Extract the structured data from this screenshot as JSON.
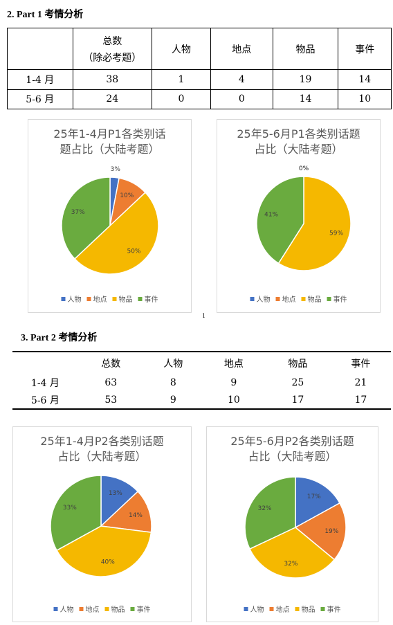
{
  "sections": [
    {
      "title": "2.  Part 1 考情分析",
      "table": {
        "header": [
          "总数",
          "人物",
          "地点",
          "物品",
          "事件"
        ],
        "header_note": "（除必考题）",
        "rows": [
          [
            "1-4 月",
            38,
            1,
            4,
            19,
            14
          ],
          [
            "5-6 月",
            24,
            0,
            0,
            14,
            10
          ]
        ]
      }
    },
    {
      "title": "3.  Part 2 考情分析",
      "table": {
        "header": [
          "总数",
          "人物",
          "地点",
          "物品",
          "事件"
        ],
        "rows": [
          [
            "1-4 月",
            63,
            8,
            9,
            25,
            21
          ],
          [
            "5-6 月",
            53,
            9,
            10,
            17,
            17
          ]
        ]
      }
    }
  ],
  "page_number": "1",
  "chart_data": [
    {
      "type": "pie",
      "title_lines": [
        "25年1-4月P1各类别话",
        "题占比（大陆考题）"
      ],
      "categories": [
        "人物",
        "地点",
        "物品",
        "事件"
      ],
      "colors": [
        "#4472c4",
        "#ed7d31",
        "#f5b800",
        "#6aab3f"
      ],
      "values": [
        3,
        10,
        50,
        37
      ],
      "value_labels": [
        "3%",
        "10%",
        "50%",
        "37%"
      ]
    },
    {
      "type": "pie",
      "title_lines": [
        "25年5-6月P1各类别话题",
        "占比（大陆考题）"
      ],
      "categories": [
        "人物",
        "地点",
        "物品",
        "事件"
      ],
      "colors": [
        "#4472c4",
        "#ed7d31",
        "#f5b800",
        "#6aab3f"
      ],
      "values": [
        0,
        0,
        59,
        41
      ],
      "value_labels": [
        "0%",
        "0%",
        "59%",
        "41%"
      ]
    },
    {
      "type": "pie",
      "title_lines": [
        "25年1-4月P2各类别话题",
        "占比（大陆考题）"
      ],
      "categories": [
        "人物",
        "地点",
        "物品",
        "事件"
      ],
      "colors": [
        "#4472c4",
        "#ed7d31",
        "#f5b800",
        "#6aab3f"
      ],
      "values": [
        13,
        14,
        40,
        33
      ],
      "value_labels": [
        "13%",
        "14%",
        "40%",
        "33%"
      ]
    },
    {
      "type": "pie",
      "title_lines": [
        "25年5-6月P2各类别话题",
        "占比（大陆考题）"
      ],
      "categories": [
        "人物",
        "地点",
        "物品",
        "事件"
      ],
      "colors": [
        "#4472c4",
        "#ed7d31",
        "#f5b800",
        "#6aab3f"
      ],
      "values": [
        17,
        19,
        32,
        32
      ],
      "value_labels": [
        "17%",
        "19%",
        "32%",
        "32%"
      ]
    }
  ]
}
